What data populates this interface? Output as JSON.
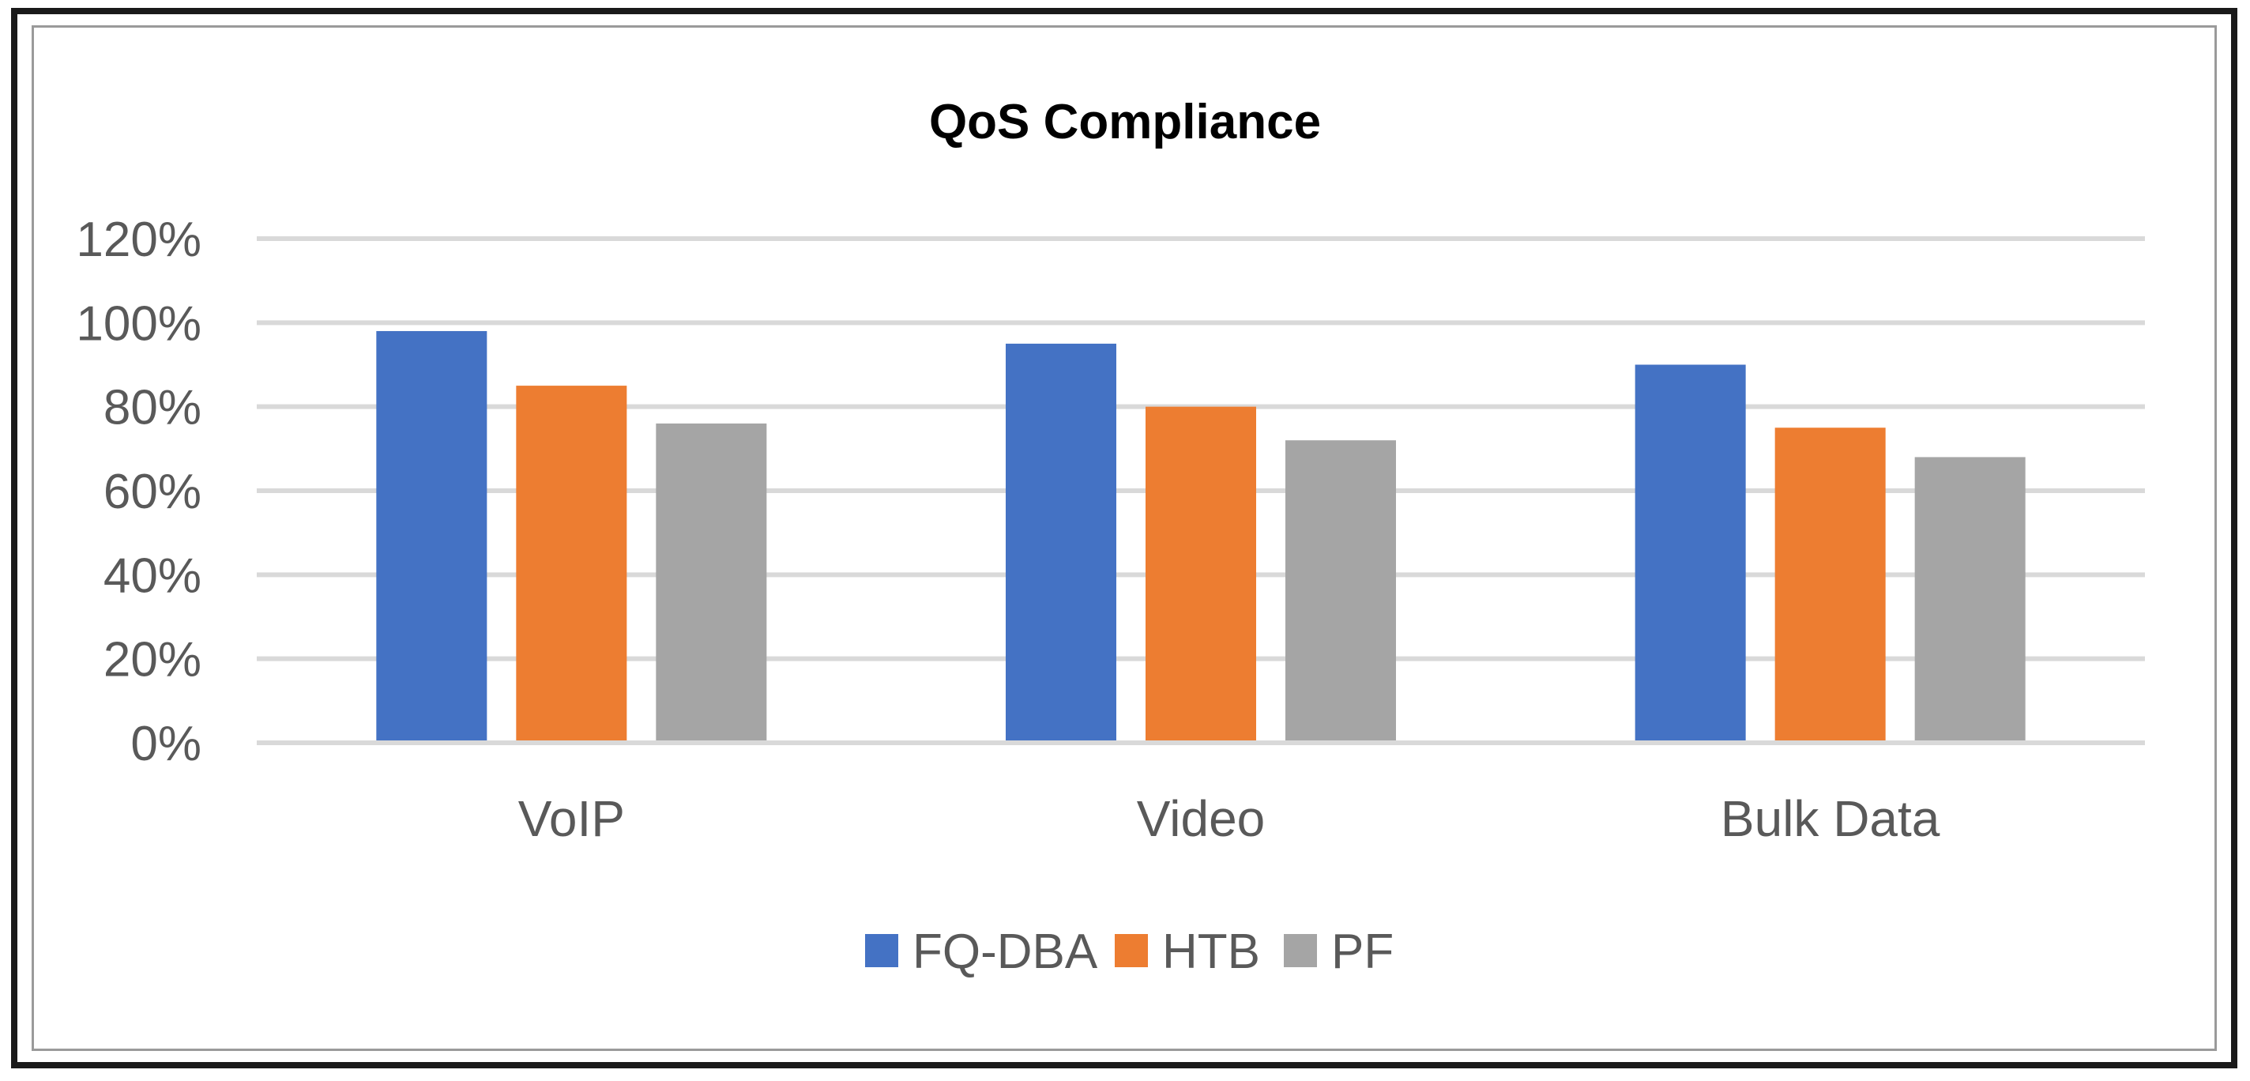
{
  "chart_data": {
    "type": "bar",
    "title": "QoS Compliance",
    "xlabel": "",
    "ylabel": "",
    "categories": [
      "VoIP",
      "Video",
      "Bulk Data"
    ],
    "series": [
      {
        "name": "FQ-DBA",
        "values": [
          98,
          95,
          90
        ],
        "color": "#4472C4"
      },
      {
        "name": "HTB",
        "values": [
          85,
          80,
          75
        ],
        "color": "#ED7D31"
      },
      {
        "name": "PF",
        "values": [
          76,
          72,
          68
        ],
        "color": "#A5A5A5"
      }
    ],
    "ylim": [
      0,
      120
    ],
    "yticks": [
      0,
      20,
      40,
      60,
      80,
      100,
      120
    ],
    "ytick_labels": [
      "0%",
      "20%",
      "40%",
      "60%",
      "80%",
      "100%",
      "120%"
    ],
    "grid": true,
    "gridline_color": "#D9D9D9",
    "legend_position": "bottom"
  }
}
